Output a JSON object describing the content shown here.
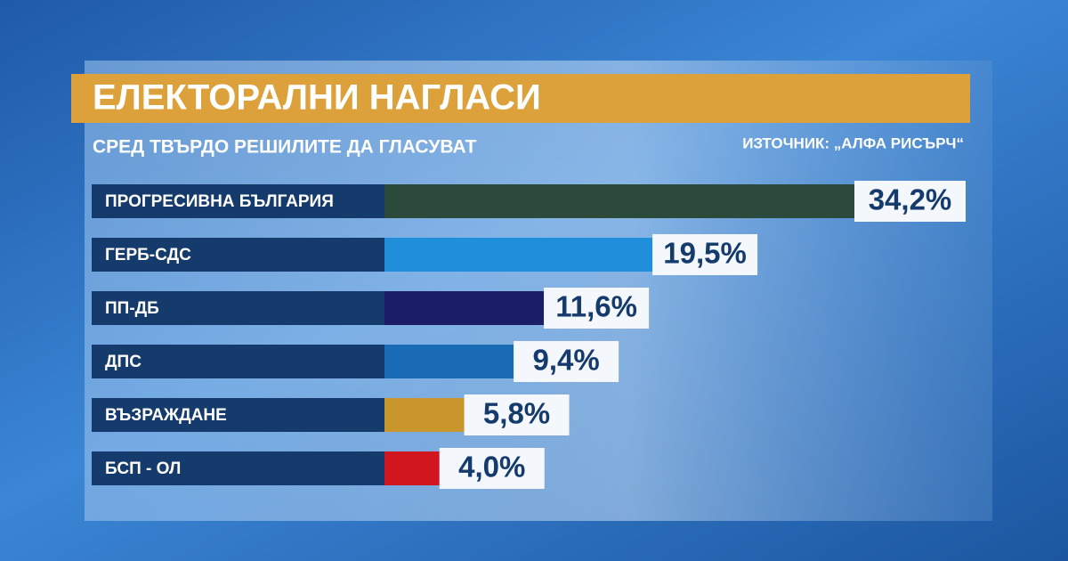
{
  "chart_data": {
    "type": "bar",
    "title": "ЕЛЕКТОРАЛНИ НАГЛАСИ",
    "subtitle": "СРЕД ТВЪРДО РЕШИЛИТЕ ДА ГЛАСУВАТ",
    "source": "ИЗТОЧНИК: „АЛФА РИСЪРЧ“",
    "categories": [
      "ПРОГРЕСИВНА БЪЛГАРИЯ",
      "ГЕРБ-СДС",
      "ПП-ДБ",
      "ДПС",
      "ВЪЗРАЖДАНЕ",
      "БСП - ОЛ"
    ],
    "values": [
      34.2,
      19.5,
      11.6,
      9.4,
      5.8,
      4.0
    ],
    "value_labels": [
      "34,2%",
      "19,5%",
      "11,6%",
      "9,4%",
      "5,8%",
      "4,0%"
    ],
    "colors": [
      "#2c4a3b",
      "#1f8fdc",
      "#1b1d66",
      "#1a6bb5",
      "#c8962a",
      "#d2161f"
    ]
  }
}
